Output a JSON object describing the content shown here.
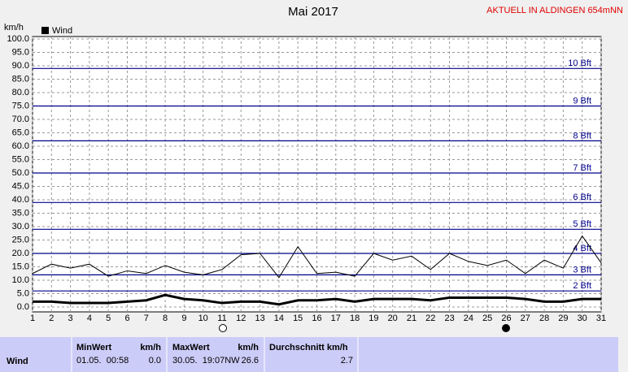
{
  "chart_data": {
    "type": "line",
    "title": "Mai 2017",
    "subtitle": "AKTUELL IN ALDINGEN 654mNN",
    "y_label": "km/h",
    "x": [
      1,
      2,
      3,
      4,
      5,
      6,
      7,
      8,
      9,
      10,
      11,
      12,
      13,
      14,
      15,
      16,
      17,
      18,
      19,
      20,
      21,
      22,
      23,
      24,
      25,
      26,
      27,
      28,
      29,
      30,
      31
    ],
    "xlim": [
      1,
      31
    ],
    "xticks": [
      1,
      2,
      3,
      4,
      5,
      6,
      7,
      8,
      9,
      10,
      11,
      12,
      13,
      14,
      15,
      16,
      17,
      18,
      19,
      20,
      21,
      22,
      23,
      24,
      25,
      26,
      27,
      28,
      29,
      30,
      31
    ],
    "ylim": [
      0,
      100
    ],
    "yticks": [
      {
        "value": 0,
        "label": "0.0"
      },
      {
        "value": 5,
        "label": "5.0"
      },
      {
        "value": 10,
        "label": "10.0"
      },
      {
        "value": 15,
        "label": "15.0"
      },
      {
        "value": 20,
        "label": "20.0"
      },
      {
        "value": 25,
        "label": "25.0"
      },
      {
        "value": 30,
        "label": "30.0"
      },
      {
        "value": 35,
        "label": "35.0"
      },
      {
        "value": 40,
        "label": "40.0"
      },
      {
        "value": 45,
        "label": "45.0"
      },
      {
        "value": 50,
        "label": "50.0"
      },
      {
        "value": 55,
        "label": "55.0"
      },
      {
        "value": 60,
        "label": "60.0"
      },
      {
        "value": 65,
        "label": "65.0"
      },
      {
        "value": 70,
        "label": "70.0"
      },
      {
        "value": 75,
        "label": "75.0"
      },
      {
        "value": 80,
        "label": "80.0"
      },
      {
        "value": 85,
        "label": "85.0"
      },
      {
        "value": 90,
        "label": "90.0"
      },
      {
        "value": 95,
        "label": "95.0"
      },
      {
        "value": 100,
        "label": "100.0"
      }
    ],
    "grid": true,
    "reference_lines": [
      {
        "value": 6,
        "label": "2 Bft"
      },
      {
        "value": 12,
        "label": "3 Bft"
      },
      {
        "value": 20,
        "label": "4 Bft"
      },
      {
        "value": 29,
        "label": "5 Bft"
      },
      {
        "value": 39,
        "label": "6 Bft"
      },
      {
        "value": 50,
        "label": "7 Bft"
      },
      {
        "value": 62,
        "label": "8 Bft"
      },
      {
        "value": 75,
        "label": "9 Bft"
      },
      {
        "value": 89,
        "label": "10 Bft"
      }
    ],
    "reference_color": "#00008b",
    "series": [
      {
        "name": "Wind",
        "color": "#000000",
        "width": 3,
        "values": [
          2,
          2,
          1.5,
          1.5,
          1.5,
          2,
          2.5,
          4.5,
          3,
          2.5,
          1.5,
          2,
          2,
          1,
          2.5,
          2.5,
          3,
          2,
          3,
          3,
          3,
          2.5,
          3.5,
          3.5,
          3.5,
          3.5,
          3,
          2,
          2,
          3,
          3
        ]
      },
      {
        "color": "#000000",
        "width": 1,
        "values": [
          12.5,
          16,
          14.5,
          16,
          11.5,
          13.5,
          12.5,
          15.5,
          13,
          12,
          14,
          19.5,
          20,
          11,
          22.5,
          12.5,
          13,
          11.5,
          20,
          17.5,
          19,
          14,
          20,
          17,
          15.5,
          17.5,
          12.5,
          17.5,
          14.5,
          26.5,
          16.5
        ]
      }
    ]
  },
  "table": {
    "headers": [
      "MinWert",
      "km/h",
      "MaxWert",
      "km/h",
      "Durchschnitt km/h"
    ],
    "rows": [
      [
        "Wind",
        "01.05.  00:58",
        "0.0",
        "30.05.  19:07NW",
        "26.6",
        "2.7"
      ]
    ]
  }
}
